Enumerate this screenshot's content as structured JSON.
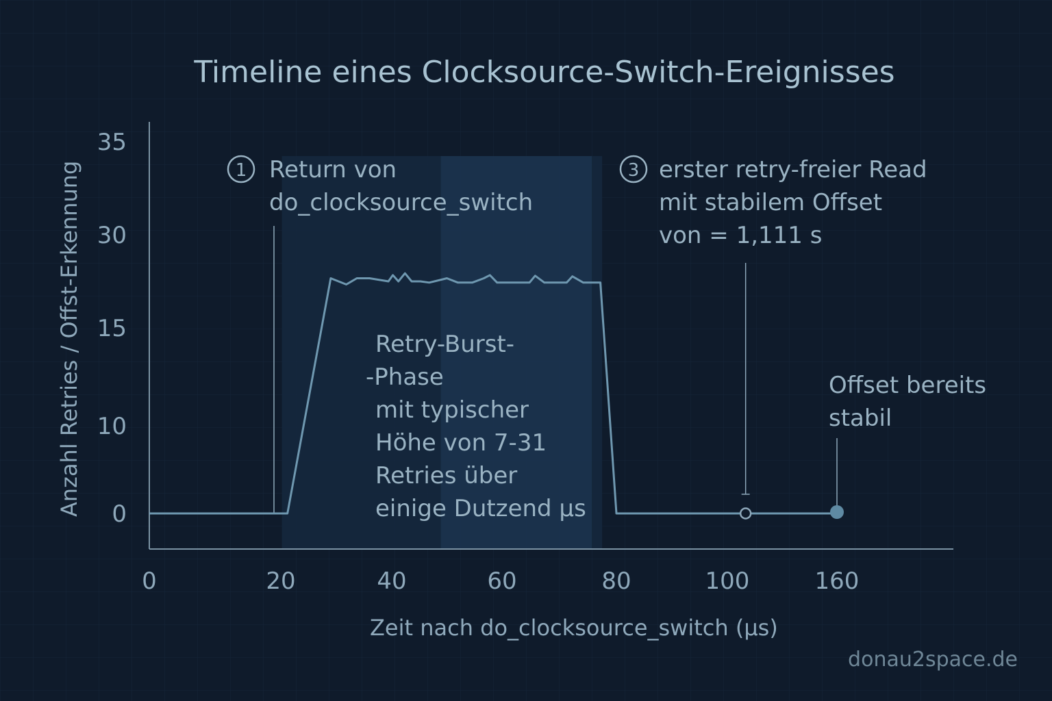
{
  "chart_data": {
    "type": "line",
    "title": "Timeline eines Clocksource-Switch-Ereignisses",
    "xlabel": "Zeit nach do_clocksource_switch (µs)",
    "ylabel": "Anzahl Retries / Offst-Erkennung",
    "x_ticks": [
      "0",
      "20",
      "40",
      "60",
      "80",
      "100",
      "160"
    ],
    "y_ticks": [
      "0",
      "10",
      "15",
      "30",
      "35"
    ],
    "x_range": [
      0,
      160
    ],
    "grid": true,
    "series": [
      {
        "x": [
          0,
          20,
          21.2,
          29,
          31.8,
          33.7,
          36,
          39.4,
          40.2,
          41.2,
          42.4,
          43.6,
          45.2,
          46.8,
          50,
          52,
          54.6,
          56.7,
          57.8,
          59.1,
          61.6,
          64.8,
          65.8,
          67.4,
          71.3,
          72.3,
          74.2,
          77.2,
          80,
          100,
          110,
          160
        ],
        "y": [
          0,
          0,
          0,
          23,
          22,
          23,
          23,
          22.5,
          23.5,
          22.5,
          23.8,
          22.5,
          22.5,
          22.3,
          23,
          22.3,
          22.3,
          23,
          23.5,
          22.3,
          22.3,
          22.3,
          23.4,
          22.3,
          22.3,
          23.3,
          22.3,
          22.3,
          0,
          0,
          0,
          0
        ]
      }
    ],
    "burst_region": [
      20.2,
      77.5
    ],
    "burst_region_inner": [
      48.9,
      75.7
    ],
    "annotations": {
      "marker1": {
        "number": "1",
        "line1": "Return von",
        "line2": "do_clocksource_switch",
        "x": 20
      },
      "burst": {
        "lines": [
          "Retry-Burst-",
          "-Phase",
          "mit typischer",
          "Höhe von 7-31",
          "Retries über",
          "einige Dutzend µs"
        ]
      },
      "marker3": {
        "number": "3",
        "line1": "erster retry-freier Read",
        "line2": "mit stabilem Offset",
        "line3": "von = 1,111 s",
        "x": 110,
        "y": 0
      },
      "stable": {
        "line1": "Offset bereits",
        "line2": "stabil",
        "x": 160,
        "y": 0
      }
    }
  },
  "watermark": "donau2space.de",
  "colors": {
    "background": "#0f1b2b",
    "line": "#6f98b0",
    "text": "#8fa9bb",
    "title": "#a9c3d2",
    "burst_fill": "#1a3148",
    "marker_fill": "#5f8aa3"
  }
}
